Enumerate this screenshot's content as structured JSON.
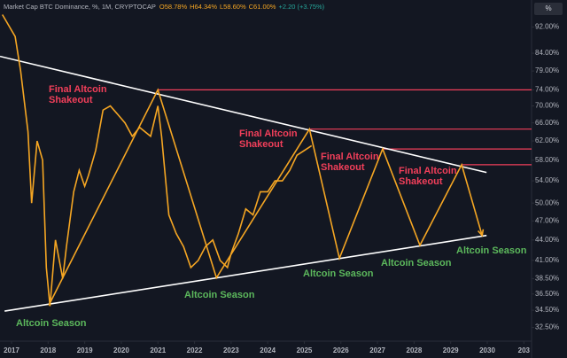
{
  "chart_data": {
    "type": "line",
    "header": {
      "title": "Market Cap BTC Dominance, %, 1M, CRYPTOCAP",
      "ohlc": [
        "O58.78%",
        "H64.34%",
        "L58.60%",
        "C61.00%",
        "+2.20 (+3.75%)"
      ]
    },
    "scale_button": "%",
    "log_scale": true,
    "grid": false,
    "xlim": [
      2016.685,
      2031.21
    ],
    "xticks": [
      2017,
      2018,
      2019,
      2020,
      2021,
      2022,
      2023,
      2024,
      2025,
      2026,
      2027,
      2028,
      2029,
      2030,
      {
        "value": 2031,
        "label": "203"
      }
    ],
    "ylim": [
      31,
      101
    ],
    "yticks": [
      {
        "value": 92,
        "label": "92.00%"
      },
      {
        "value": 84,
        "label": "84.00%"
      },
      {
        "value": 79,
        "label": "79.00%"
      },
      {
        "value": 74,
        "label": "74.00%"
      },
      {
        "value": 70,
        "label": "70.00%"
      },
      {
        "value": 66,
        "label": "66.00%"
      },
      {
        "value": 62,
        "label": "62.00%"
      },
      {
        "value": 58,
        "label": "58.00%"
      },
      {
        "value": 54,
        "label": "54.00%"
      },
      {
        "value": 50,
        "label": "50.00%"
      },
      {
        "value": 47,
        "label": "47.00%"
      },
      {
        "value": 44,
        "label": "44.00%"
      },
      {
        "value": 41,
        "label": "41.00%"
      },
      {
        "value": 38.5,
        "label": "38.50%"
      },
      {
        "value": 36.5,
        "label": "36.50%"
      },
      {
        "value": 34.5,
        "label": "34.50%"
      },
      {
        "value": 32.5,
        "label": "32.50%"
      }
    ],
    "series": [
      {
        "color": "#f5a623",
        "x": [
          2016.75,
          2017.1,
          2017.25,
          2017.45,
          2017.55,
          2017.7,
          2017.85,
          2017.95,
          2018.05,
          2018.2,
          2018.4,
          2018.5,
          2018.7,
          2018.85,
          2019.0,
          2019.1,
          2019.3,
          2019.5,
          2019.7,
          2019.9,
          2020.1,
          2020.3,
          2020.5,
          2020.8,
          2021.0,
          2021.1,
          2021.3,
          2021.5,
          2021.7,
          2021.9,
          2022.1,
          2022.3,
          2022.5,
          2022.7,
          2022.9,
          2023.0,
          2023.2,
          2023.4,
          2023.6,
          2023.8,
          2024.0,
          2024.2,
          2024.4,
          2024.6,
          2024.8,
          2025.0,
          2025.2
        ],
        "values": [
          96,
          89,
          79,
          64,
          50,
          62,
          58,
          40,
          35,
          44,
          38.5,
          43,
          52,
          56,
          53,
          55,
          60,
          69,
          70,
          68,
          66,
          63,
          65,
          63,
          70,
          63,
          48,
          45,
          43,
          40,
          41,
          43,
          44,
          41,
          40,
          42,
          45,
          49,
          48,
          52,
          52,
          54,
          54,
          56,
          59,
          60,
          61
        ]
      }
    ],
    "trendlines": [
      {
        "color": "#ffffff",
        "x": [
          2016.685,
          2029.98
        ],
        "values": [
          83.1,
          55.6
        ]
      },
      {
        "color": "#ffffff",
        "x": [
          2016.81,
          2029.98
        ],
        "values": [
          34.4,
          44.7
        ]
      }
    ],
    "projection": {
      "color": "#f5a623",
      "x": [
        2018.02,
        2021.0,
        2022.6,
        2025.14,
        2025.96,
        2027.14,
        2028.16,
        2029.3,
        2029.86
      ],
      "values": [
        35.1,
        74,
        38.6,
        64.6,
        41.3,
        60.3,
        43.2,
        57.1,
        44.7
      ]
    },
    "levels": {
      "color": "#f23f5a",
      "x": [
        2021.0,
        2025.14,
        2027.14,
        2029.3
      ],
      "values": [
        74,
        64.6,
        60.3,
        57.1
      ]
    },
    "annotations": [
      {
        "color": "#5cb85c",
        "lines": [
          "Altcoin Season"
        ]
      },
      {
        "color": "#f23f5a",
        "lines": [
          "Final Altcoin",
          "Shakeout"
        ]
      },
      {
        "color": "#5cb85c",
        "lines": [
          "Altcoin Season"
        ]
      },
      {
        "color": "#f23f5a",
        "lines": [
          "Final Altcoin",
          "Shakeout"
        ]
      },
      {
        "color": "#5cb85c",
        "lines": [
          "Altcoin Season"
        ]
      },
      {
        "color": "#f23f5a",
        "lines": [
          "Final Altcoin",
          "Shakeout"
        ]
      },
      {
        "color": "#5cb85c",
        "lines": [
          "Altcoin Season"
        ]
      },
      {
        "color": "#f23f5a",
        "lines": [
          "Final Altcoin",
          "Shakeout"
        ]
      },
      {
        "color": "#5cb85c",
        "lines": [
          "Altcoin Season"
        ]
      }
    ]
  }
}
